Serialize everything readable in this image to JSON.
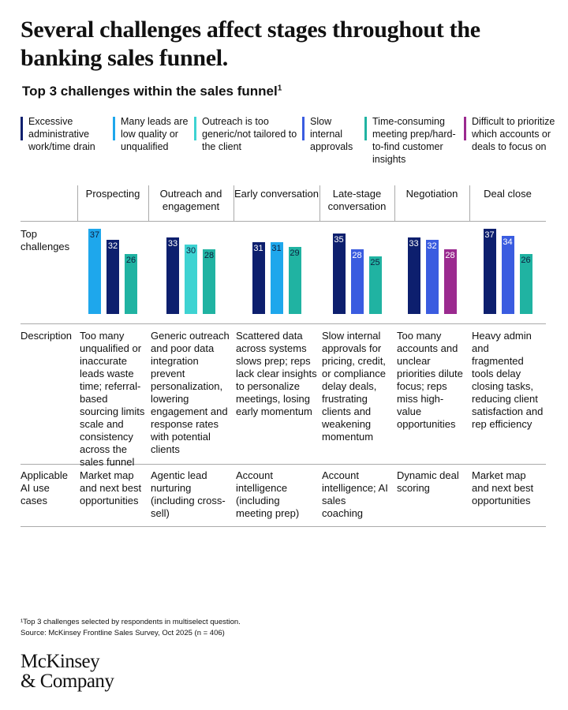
{
  "chart_data": {
    "type": "grouped-bar-table",
    "title": "Several challenges affect stages throughout the banking sales funnel.",
    "subtitle": "Top 3 challenges within the sales funnel",
    "subtitle_note": "1",
    "legend": [
      {
        "name": "Excessive administrative work/time drain",
        "color": "#0d1f6e"
      },
      {
        "name": "Many leads are low quality or unqualified",
        "color": "#1ea7ec"
      },
      {
        "name": "Outreach is too generic/not tailored to the client",
        "color": "#3ed3d2"
      },
      {
        "name": "Slow internal approvals",
        "color": "#3a5ce0"
      },
      {
        "name": "Time-consuming meeting prep/hard-to-find customer insights",
        "color": "#20b3a2"
      },
      {
        "name": "Difficult to prioritize which accounts or deals to focus on",
        "color": "#9b2a8f"
      }
    ],
    "row_labels": [
      "Top challenges",
      "Description",
      "Applicable AI use cases"
    ],
    "categories": [
      "Prospecting",
      "Outreach and engagement",
      "Early conversation",
      "Late-stage conversation",
      "Negotiation",
      "Deal close"
    ],
    "groups": [
      {
        "values": [
          37,
          32,
          26
        ],
        "colors": [
          "#1ea7ec",
          "#0d1f6e",
          "#20b3a2"
        ]
      },
      {
        "values": [
          33,
          30,
          28
        ],
        "colors": [
          "#0d1f6e",
          "#3ed3d2",
          "#20b3a2"
        ]
      },
      {
        "values": [
          31,
          31,
          29
        ],
        "colors": [
          "#0d1f6e",
          "#1ea7ec",
          "#20b3a2"
        ]
      },
      {
        "values": [
          35,
          28,
          25
        ],
        "colors": [
          "#0d1f6e",
          "#3a5ce0",
          "#20b3a2"
        ]
      },
      {
        "values": [
          33,
          32,
          28
        ],
        "colors": [
          "#0d1f6e",
          "#3a5ce0",
          "#9b2a8f"
        ]
      },
      {
        "values": [
          37,
          34,
          26
        ],
        "colors": [
          "#0d1f6e",
          "#3a5ce0",
          "#20b3a2"
        ]
      }
    ],
    "ylim": [
      0,
      40
    ],
    "descriptions": [
      "Too many unqualified or inaccurate leads waste time; referral-based sourcing limits scale and consistency across the sales funnel",
      "Generic outreach and poor data integration prevent personalization, lowering engagement and response rates with potential clients",
      "Scattered data across systems slows prep; reps lack clear insights to personalize meetings, losing early momentum",
      "Slow internal approvals for pricing, credit, or compliance delay deals, frustrating clients and weakening momentum",
      "Too many accounts and unclear priorities dilute focus; reps miss high-value opportunities",
      "Heavy admin and fragmented tools delay closing tasks, reducing client satisfaction and rep efficiency"
    ],
    "ai_use_cases": [
      "Market map and next best opportunities",
      "Agentic lead nurturing (including cross-sell)",
      "Account intelligence (including meeting prep)",
      "Account intelligence; AI sales coaching",
      "Dynamic deal scoring",
      "Market map and next best opportunities"
    ],
    "footnote": "¹Top 3 challenges selected by respondents in multiselect question.",
    "source": "Source: McKinsey Frontline Sales Survey, Oct 2025 (n = 406)",
    "logo": [
      "McKinsey",
      "& Company"
    ]
  }
}
